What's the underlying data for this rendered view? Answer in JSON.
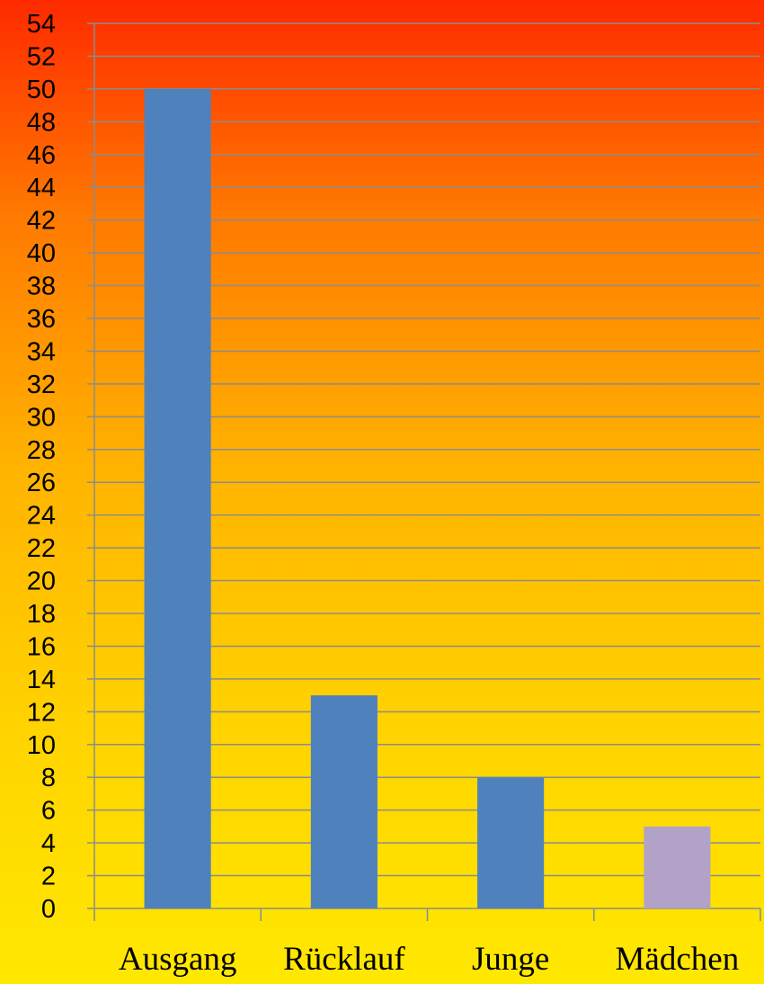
{
  "chart_data": {
    "type": "bar",
    "categories": [
      "Ausgang",
      "Rücklauf",
      "Junge",
      "Mädchen"
    ],
    "values": [
      50,
      13,
      8,
      5
    ],
    "colors": [
      "#4f81bd",
      "#4f81bd",
      "#4f81bd",
      "#b3a2c7"
    ],
    "ylim": [
      0,
      54
    ],
    "ytick_step": 2,
    "grid": true,
    "legend": "none"
  }
}
